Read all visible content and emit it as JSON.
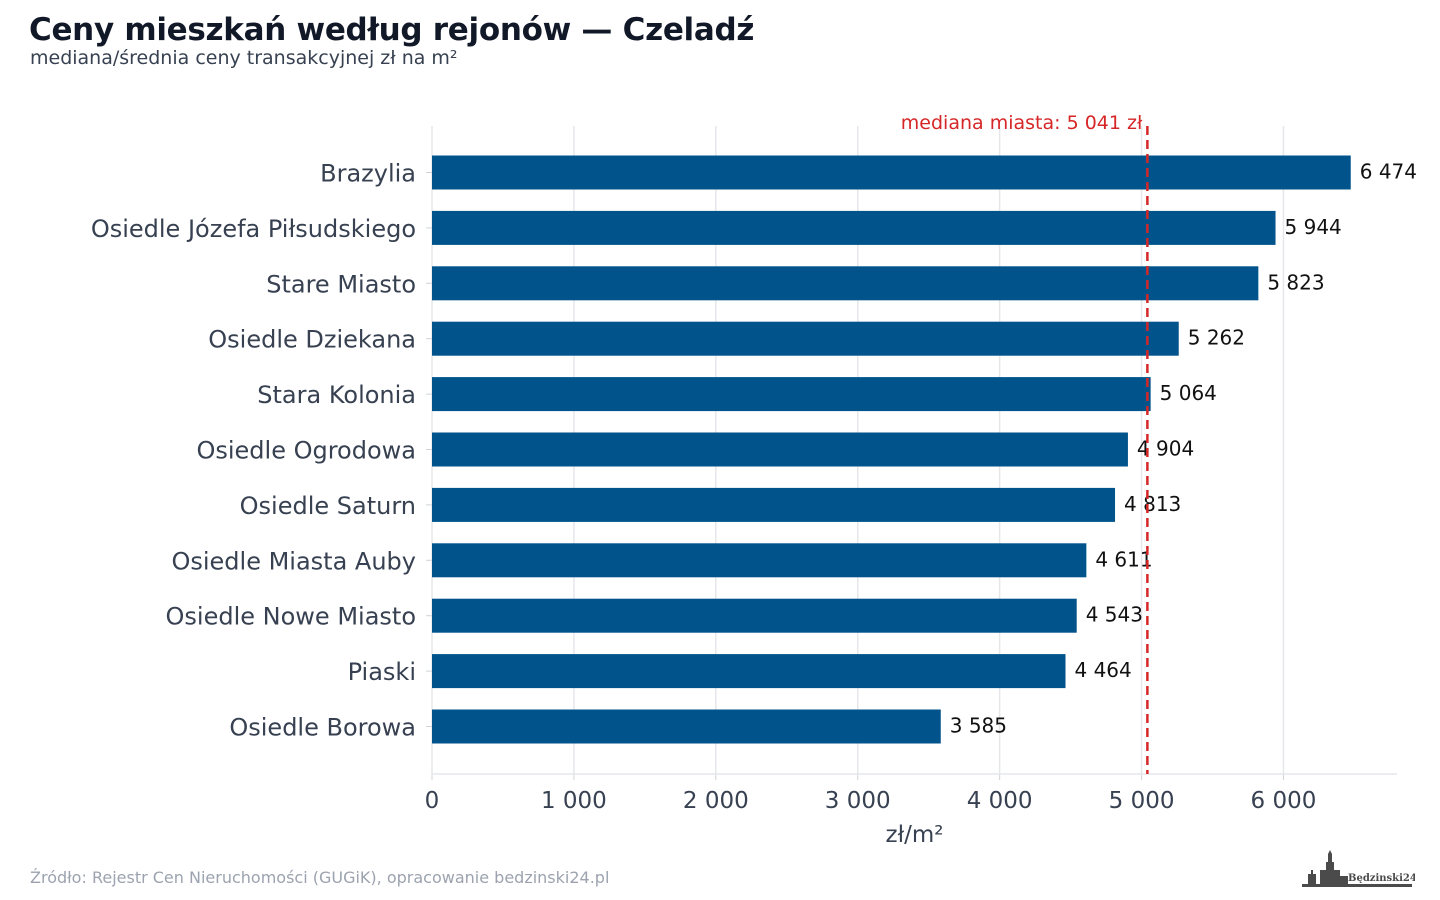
{
  "header": {
    "title": "Ceny mieszkań według rejonów — Czeladź",
    "subtitle": "mediana/średnia ceny transakcyjnej zł na m²"
  },
  "footer": {
    "source": "Źródło: Rejestr Cen Nieruchomości (GUGiK), opracowanie bedzinski24.pl",
    "logo_text": "Będzinski24.pl"
  },
  "colors": {
    "bar": "#00538b",
    "median_line": "#d62728",
    "grid": "#e5e7eb",
    "axis_text": "#374151",
    "label_text": "#111111"
  },
  "chart_data": {
    "type": "bar",
    "orientation": "horizontal",
    "categories": [
      "Brazylia",
      "Osiedle Józefa Piłsudskiego",
      "Stare Miasto",
      "Osiedle Dziekana",
      "Stara Kolonia",
      "Osiedle Ogrodowa",
      "Osiedle Saturn",
      "Osiedle Miasta Auby",
      "Osiedle Nowe Miasto",
      "Piaski",
      "Osiedle Borowa"
    ],
    "values": [
      6474,
      5944,
      5823,
      5262,
      5064,
      4904,
      4813,
      4611,
      4543,
      4464,
      3585
    ],
    "value_labels": [
      "6 474",
      "5 944",
      "5 823",
      "5 262",
      "5 064",
      "4 904",
      "4 813",
      "4 611",
      "4 543",
      "4 464",
      "3 585"
    ],
    "xlabel": "zł/m²",
    "xlim": [
      0,
      6800
    ],
    "xticks": [
      0,
      1000,
      2000,
      3000,
      4000,
      5000,
      6000
    ],
    "xtick_labels": [
      "0",
      "1 000",
      "2 000",
      "3 000",
      "4 000",
      "5 000",
      "6 000"
    ],
    "grid": "vertical",
    "reference_line": {
      "value": 5041,
      "label": "mediana miasta: 5 041 zł",
      "style": "dashed"
    }
  }
}
